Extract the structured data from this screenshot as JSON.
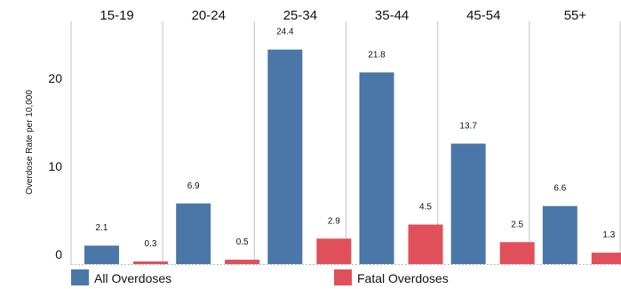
{
  "chart_data": {
    "type": "bar",
    "title": "",
    "xlabel": "",
    "ylabel": "Overdose Rate per 10,000",
    "categories": [
      "15-19",
      "20-24",
      "25-34",
      "35-44",
      "45-54",
      "55+"
    ],
    "series": [
      {
        "name": "All Overdoses",
        "values": [
          2.1,
          6.9,
          24.4,
          21.8,
          13.7,
          6.6
        ],
        "color": "#4a77a8"
      },
      {
        "name": "Fatal Overdoses",
        "values": [
          0.3,
          0.5,
          2.9,
          4.5,
          2.5,
          1.3
        ],
        "color": "#e0505a"
      }
    ],
    "ylim": [
      0,
      27
    ],
    "yticks": [
      0,
      10,
      20
    ],
    "legend_position": "bottom",
    "colors": {
      "panel_divider": "#cccccc",
      "baseline": "#bbbbbb"
    }
  }
}
